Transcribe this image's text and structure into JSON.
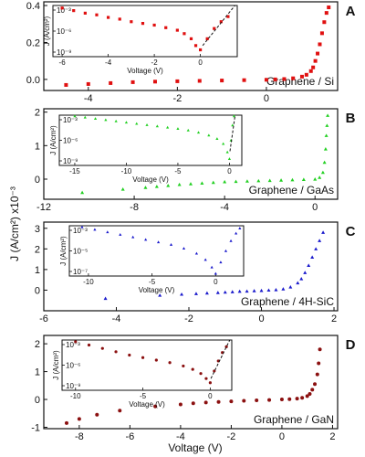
{
  "figure": {
    "ylabel": "J (A/cm²) x10⁻³",
    "xlabel": "Voltage (V)"
  },
  "chart_data": [
    {
      "type": "scatter",
      "panel_label": "A",
      "material_label": "Graphene / Si",
      "color": "#e01010",
      "marker": "square",
      "xlim": [
        -5,
        1.6
      ],
      "ylim": [
        -0.06,
        0.42
      ],
      "xticks": [
        -4,
        -2,
        0
      ],
      "yticks": [
        0.0,
        0.2,
        0.4
      ],
      "ytick_labels": [
        "0.0",
        "0.2",
        "0.4"
      ],
      "series": [
        {
          "x": [
            -4.5,
            -4.0,
            -3.5,
            -3.0,
            -2.5,
            -2.0,
            -1.5,
            -1.0,
            -0.5,
            0.0,
            0.2,
            0.4,
            0.6,
            0.8,
            0.9,
            1.0,
            1.05,
            1.1,
            1.15,
            1.2,
            1.25,
            1.3,
            1.35,
            1.4
          ],
          "y": [
            -0.03,
            -0.025,
            -0.02,
            -0.015,
            -0.012,
            -0.01,
            -0.008,
            -0.006,
            -0.004,
            -0.002,
            0.0,
            0.002,
            0.006,
            0.015,
            0.025,
            0.045,
            0.065,
            0.1,
            0.14,
            0.19,
            0.25,
            0.31,
            0.36,
            0.39
          ]
        }
      ],
      "inset": {
        "xlabel": "Voltage (V)",
        "ylabel": "J (A/cm²)",
        "xlim": [
          -6.4,
          1.6
        ],
        "xticks": [
          -6,
          -4,
          -2,
          0
        ],
        "ytick_labels": [
          "10⁻³",
          "10⁻⁶",
          "10⁻⁹"
        ],
        "ylog": [
          -9,
          -3
        ],
        "x": [
          -6,
          -5.5,
          -5,
          -4.5,
          -4,
          -3.5,
          -3,
          -2.5,
          -2,
          -1.5,
          -1,
          -0.7,
          -0.4,
          -0.2,
          0,
          0.3,
          0.6,
          0.9,
          1.2
        ],
        "y": [
          -3.3,
          -3.6,
          -3.9,
          -4.1,
          -4.4,
          -4.6,
          -4.9,
          -5.1,
          -5.3,
          -5.6,
          -5.9,
          -6.3,
          -6.9,
          -7.7,
          -8.2,
          -6.9,
          -5.7,
          -4.9,
          -4.3
        ],
        "fit": {
          "x": [
            0.1,
            1.5
          ],
          "y": [
            -7.7,
            -2.9
          ]
        }
      }
    },
    {
      "type": "scatter",
      "panel_label": "B",
      "material_label": "Graphene / GaAs",
      "color": "#22d022",
      "marker": "triangle",
      "xlim": [
        -12,
        1
      ],
      "ylim": [
        -0.6,
        2.1
      ],
      "xticks": [
        -12,
        -8,
        -4,
        0
      ],
      "yticks": [
        0,
        1,
        2
      ],
      "ytick_labels": [
        "0",
        "1",
        "2"
      ],
      "series": [
        {
          "x": [
            -10.3,
            -8.5,
            -7.5,
            -7.0,
            -6.5,
            -6.0,
            -5.5,
            -5.0,
            -4.5,
            -4.0,
            -3.5,
            -3.0,
            -2.5,
            -2.0,
            -1.5,
            -1.0,
            -0.5,
            0.0,
            0.2,
            0.35,
            0.42,
            0.47,
            0.5,
            0.53,
            0.56
          ],
          "y": [
            -0.4,
            -0.3,
            -0.25,
            -0.22,
            -0.19,
            -0.16,
            -0.14,
            -0.12,
            -0.1,
            -0.08,
            -0.07,
            -0.06,
            -0.05,
            -0.04,
            -0.03,
            -0.02,
            -0.01,
            0.0,
            0.05,
            0.2,
            0.5,
            0.9,
            1.3,
            1.6,
            1.9
          ]
        }
      ],
      "inset": {
        "xlabel": "Voltage (V)",
        "ylabel": "J (A/cm²)",
        "xlim": [
          -16.5,
          1.2
        ],
        "xticks": [
          -15,
          -10,
          -5,
          0
        ],
        "ytick_labels": [
          "10⁻³",
          "10⁻⁶",
          "10⁻⁹"
        ],
        "ylog": [
          -9,
          -3
        ],
        "x": [
          -15,
          -14,
          -13,
          -12,
          -11,
          -10,
          -9,
          -8,
          -7,
          -6,
          -5,
          -4,
          -3,
          -2,
          -1.2,
          -0.6,
          -0.2,
          0,
          0.15,
          0.3,
          0.45
        ],
        "y": [
          -3.1,
          -3.25,
          -3.4,
          -3.55,
          -3.7,
          -3.85,
          -4.0,
          -4.15,
          -4.3,
          -4.45,
          -4.6,
          -4.8,
          -5.05,
          -5.4,
          -5.8,
          -6.4,
          -7.4,
          -8.2,
          -6.0,
          -4.2,
          -3.1
        ],
        "fit": {
          "x": [
            0.05,
            0.55
          ],
          "y": [
            -7.3,
            -2.8
          ]
        }
      }
    },
    {
      "type": "scatter",
      "panel_label": "C",
      "material_label": "Graphene / 4H-SiC",
      "color": "#1a1acc",
      "marker": "triangle",
      "xlim": [
        -6,
        2.1
      ],
      "ylim": [
        -1.0,
        3.3
      ],
      "xticks": [
        -6,
        -4,
        -2,
        0,
        2
      ],
      "yticks": [
        0,
        1,
        2,
        3
      ],
      "ytick_labels": [
        "0",
        "1",
        "2",
        "3"
      ],
      "series": [
        {
          "x": [
            -4.3,
            -2.8,
            -2.2,
            -1.8,
            -1.5,
            -1.2,
            -1.0,
            -0.8,
            -0.6,
            -0.4,
            -0.2,
            0.0,
            0.2,
            0.4,
            0.6,
            0.8,
            1.0,
            1.1,
            1.2,
            1.3,
            1.4,
            1.5,
            1.6,
            1.7
          ],
          "y": [
            -0.4,
            -0.25,
            -0.2,
            -0.17,
            -0.14,
            -0.12,
            -0.1,
            -0.08,
            -0.06,
            -0.05,
            -0.03,
            -0.02,
            0.0,
            0.02,
            0.06,
            0.15,
            0.35,
            0.55,
            0.85,
            1.2,
            1.6,
            2.0,
            2.4,
            2.8
          ]
        }
      ],
      "inset": {
        "xlabel": "Voltage (V)",
        "ylabel": "J (A/cm²)",
        "xlim": [
          -11.5,
          2.2
        ],
        "xticks": [
          -10,
          -5,
          0
        ],
        "ytick_labels": [
          "10⁻³",
          "10⁻⁵",
          "10⁻⁷"
        ],
        "ylog": [
          -7,
          -3
        ],
        "x": [
          -10.5,
          -9.5,
          -8.5,
          -7.5,
          -6.5,
          -5.5,
          -4.5,
          -3.5,
          -2.5,
          -1.5,
          -0.8,
          -0.3,
          0,
          0.4,
          0.8,
          1.2,
          1.6,
          1.9
        ],
        "y": [
          -3.1,
          -3.3,
          -3.5,
          -3.7,
          -3.9,
          -4.1,
          -4.3,
          -4.5,
          -4.8,
          -5.2,
          -5.7,
          -6.3,
          -6.8,
          -5.9,
          -5.0,
          -4.2,
          -3.6,
          -3.2
        ],
        "fit": null
      }
    },
    {
      "type": "scatter",
      "panel_label": "D",
      "material_label": "Graphene / GaN",
      "color": "#8b1010",
      "marker": "circle",
      "xlim": [
        -9.4,
        2.2
      ],
      "ylim": [
        -1.05,
        2.3
      ],
      "xticks": [
        -8,
        -6,
        -4,
        -2,
        0,
        2
      ],
      "yticks": [
        -1,
        0,
        1,
        2
      ],
      "ytick_labels": [
        "-1",
        "0",
        "1",
        "2"
      ],
      "series": [
        {
          "x": [
            -8.5,
            -8.0,
            -7.3,
            -6.4,
            -5.0,
            -4.0,
            -3.5,
            -3.0,
            -2.5,
            -2.0,
            -1.5,
            -1.0,
            -0.5,
            0.0,
            0.3,
            0.6,
            0.8,
            1.0,
            1.1,
            1.2,
            1.3,
            1.4,
            1.45,
            1.5
          ],
          "y": [
            -0.85,
            -0.7,
            -0.55,
            -0.4,
            -0.25,
            -0.18,
            -0.14,
            -0.11,
            -0.09,
            -0.07,
            -0.05,
            -0.03,
            -0.02,
            0.0,
            0.01,
            0.03,
            0.06,
            0.12,
            0.2,
            0.35,
            0.55,
            0.9,
            1.3,
            1.8
          ]
        }
      ],
      "inset": {
        "xlabel": "Voltage (V)",
        "ylabel": "J (A/cm²)",
        "xlim": [
          -11,
          1.6
        ],
        "xticks": [
          -10,
          -5,
          0
        ],
        "ytick_labels": [
          "10⁻³",
          "10⁻⁶",
          "10⁻⁹"
        ],
        "ylog": [
          -9,
          -3
        ],
        "x": [
          -10,
          -9,
          -8,
          -7,
          -6,
          -5,
          -4,
          -3,
          -2,
          -1.3,
          -0.7,
          -0.3,
          0,
          0.3,
          0.6,
          0.9,
          1.2
        ],
        "y": [
          -3.2,
          -3.6,
          -4.0,
          -4.4,
          -4.8,
          -5.1,
          -5.4,
          -5.7,
          -6.1,
          -6.5,
          -7.0,
          -7.6,
          -8.1,
          -6.7,
          -5.5,
          -4.5,
          -3.8
        ],
        "fit": {
          "x": [
            0.05,
            1.45
          ],
          "y": [
            -7.6,
            -2.9
          ]
        }
      }
    }
  ]
}
